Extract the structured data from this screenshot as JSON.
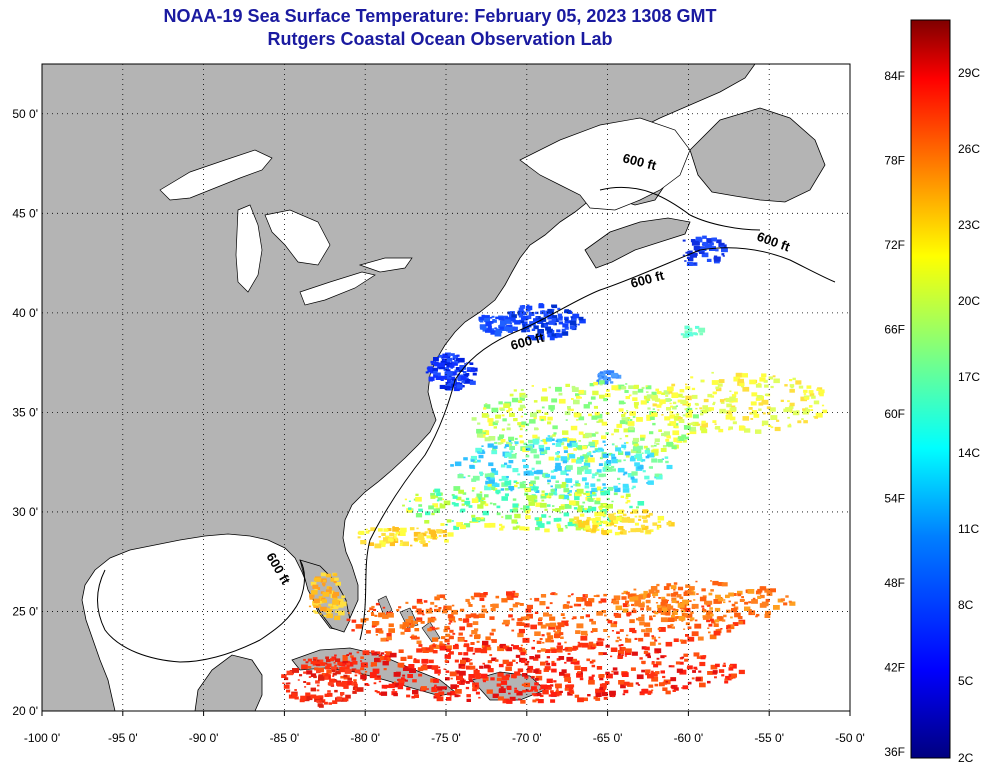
{
  "title": {
    "line1": "NOAA-19 Sea Surface Temperature:  February 05, 2023 1308 GMT",
    "line2": "Rutgers Coastal Ocean Observation Lab"
  },
  "map": {
    "lon_range": [
      -100,
      -50
    ],
    "lat_range": [
      20,
      52.5
    ],
    "lon_ticks": [
      "-100 0'",
      "-95 0'",
      "-90 0'",
      "-85 0'",
      "-80 0'",
      "-75 0'",
      "-70 0'",
      "-65 0'",
      "-60 0'",
      "-55 0'",
      "-50 0'"
    ],
    "lat_ticks": [
      "50 0'",
      "45 0'",
      "40 0'",
      "35 0'",
      "30 0'",
      "25 0'",
      "20 0'"
    ],
    "contour_label": "600 ft",
    "land_color": "#b4b4b4",
    "no_data_color": "#ffffff"
  },
  "colorbar": {
    "f_labels": [
      "84F",
      "78F",
      "72F",
      "66F",
      "60F",
      "54F",
      "48F",
      "42F",
      "36F"
    ],
    "c_labels": [
      "29C",
      "26C",
      "23C",
      "20C",
      "17C",
      "14C",
      "11C",
      "8C",
      "5C",
      "2C"
    ],
    "colors": [
      "#00007f",
      "#0000ff",
      "#007fff",
      "#00ffff",
      "#7fff7f",
      "#ffff00",
      "#ff7f00",
      "#ff0000",
      "#7f0000"
    ]
  }
}
